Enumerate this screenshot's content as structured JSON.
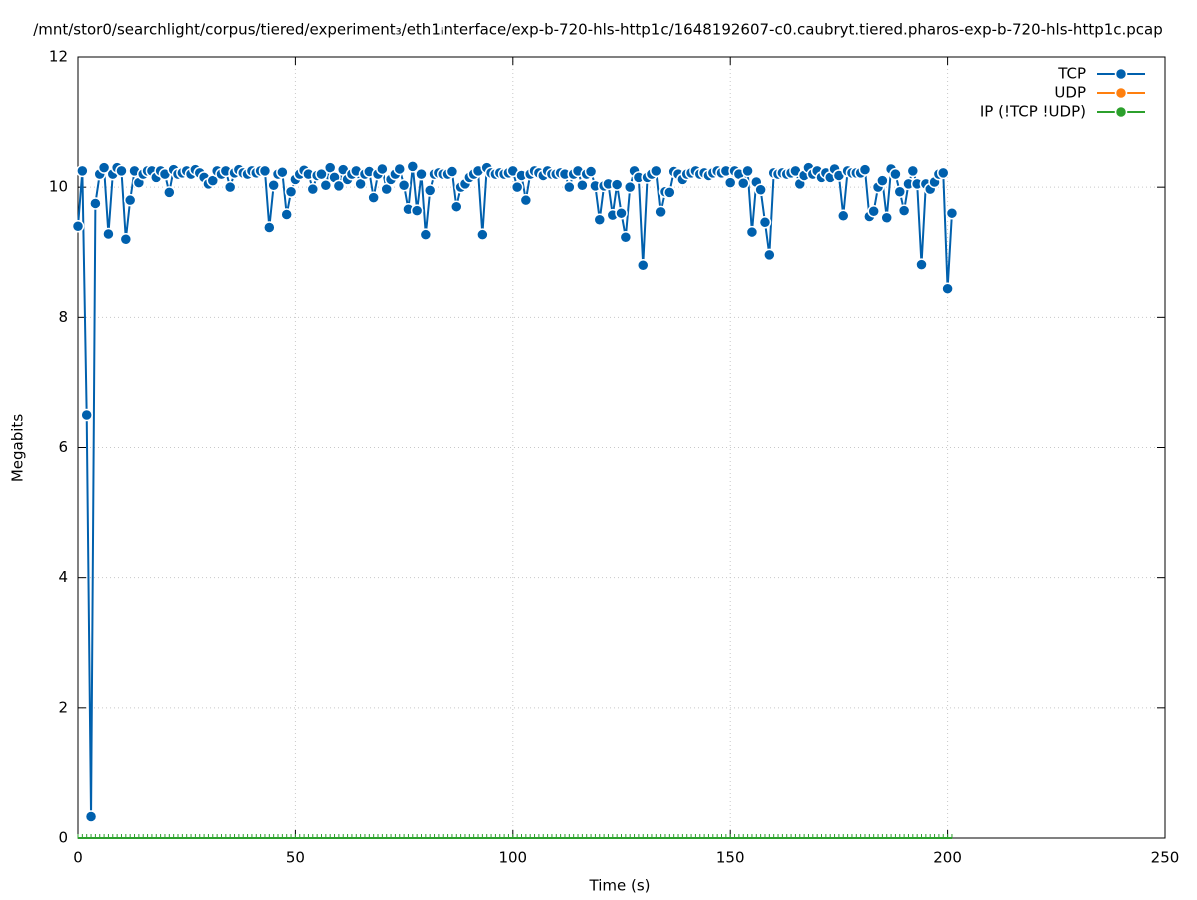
{
  "chart_data": {
    "type": "line",
    "title": "/mnt/stor0/searchlight/corpus/tiered/experiment₃/eth1ᵢnterface/exp-b-720-hls-http1c/1648192607-c0.caubryt.tiered.pharos-exp-b-720-hls-http1c.pcap",
    "xlabel": "Time (s)",
    "ylabel": "Megabits",
    "xlim": [
      0,
      250
    ],
    "xticks": [
      0,
      50,
      100,
      150,
      200,
      250
    ],
    "ylim": [
      0,
      12
    ],
    "yticks": [
      0,
      2,
      4,
      6,
      8,
      10,
      12
    ],
    "grid": true,
    "legend": "top-right",
    "x": [
      0,
      1,
      2,
      3,
      4,
      5,
      6,
      7,
      8,
      9,
      10,
      11,
      12,
      13,
      14,
      15,
      16,
      17,
      18,
      19,
      20,
      21,
      22,
      23,
      24,
      25,
      26,
      27,
      28,
      29,
      30,
      31,
      32,
      33,
      34,
      35,
      36,
      37,
      38,
      39,
      40,
      41,
      42,
      43,
      44,
      45,
      46,
      47,
      48,
      49,
      50,
      51,
      52,
      53,
      54,
      55,
      56,
      57,
      58,
      59,
      60,
      61,
      62,
      63,
      64,
      65,
      66,
      67,
      68,
      69,
      70,
      71,
      72,
      73,
      74,
      75,
      76,
      77,
      78,
      79,
      80,
      81,
      82,
      83,
      84,
      85,
      86,
      87,
      88,
      89,
      90,
      91,
      92,
      93,
      94,
      95,
      96,
      97,
      98,
      99,
      100,
      101,
      102,
      103,
      104,
      105,
      106,
      107,
      108,
      109,
      110,
      111,
      112,
      113,
      114,
      115,
      116,
      117,
      118,
      119,
      120,
      121,
      122,
      123,
      124,
      125,
      126,
      127,
      128,
      129,
      130,
      131,
      132,
      133,
      134,
      135,
      136,
      137,
      138,
      139,
      140,
      141,
      142,
      143,
      144,
      145,
      146,
      147,
      148,
      149,
      150,
      151,
      152,
      153,
      154,
      155,
      156,
      157,
      158,
      159,
      160,
      161,
      162,
      163,
      164,
      165,
      166,
      167,
      168,
      169,
      170,
      171,
      172,
      173,
      174,
      175,
      176,
      177,
      178,
      179,
      180,
      181,
      182,
      183,
      184,
      185,
      186,
      187,
      188,
      189,
      190,
      191,
      192,
      193,
      194,
      195,
      196,
      197,
      198,
      199,
      200,
      201
    ],
    "series": [
      {
        "name": "TCP",
        "color": "#0060ad",
        "values": [
          9.4,
          10.25,
          6.5,
          0.33,
          9.75,
          10.2,
          10.3,
          9.28,
          10.2,
          10.3,
          10.25,
          9.2,
          9.8,
          10.25,
          10.07,
          10.2,
          10.25,
          10.25,
          10.15,
          10.25,
          10.2,
          9.92,
          10.27,
          10.2,
          10.22,
          10.25,
          10.2,
          10.27,
          10.22,
          10.15,
          10.05,
          10.1,
          10.25,
          10.2,
          10.25,
          10.0,
          10.22,
          10.27,
          10.22,
          10.2,
          10.25,
          10.22,
          10.25,
          10.25,
          9.38,
          10.03,
          10.2,
          10.23,
          9.58,
          9.93,
          10.12,
          10.2,
          10.26,
          10.2,
          9.97,
          10.18,
          10.2,
          10.03,
          10.3,
          10.15,
          10.02,
          10.27,
          10.12,
          10.2,
          10.25,
          10.05,
          10.2,
          10.24,
          9.84,
          10.2,
          10.28,
          9.97,
          10.12,
          10.2,
          10.28,
          10.03,
          9.66,
          10.32,
          9.64,
          10.2,
          9.27,
          9.95,
          10.2,
          10.22,
          10.2,
          10.2,
          10.24,
          9.7,
          10.0,
          10.05,
          10.15,
          10.2,
          10.25,
          9.27,
          10.3,
          10.22,
          10.2,
          10.22,
          10.2,
          10.22,
          10.25,
          10.0,
          10.18,
          9.8,
          10.2,
          10.25,
          10.22,
          10.18,
          10.25,
          10.2,
          10.2,
          10.22,
          10.2,
          10.0,
          10.2,
          10.25,
          10.03,
          10.2,
          10.24,
          10.02,
          9.5,
          10.02,
          10.05,
          9.57,
          10.04,
          9.6,
          9.23,
          10.0,
          10.25,
          10.15,
          8.8,
          10.15,
          10.2,
          10.25,
          9.62,
          9.93,
          9.92,
          10.24,
          10.2,
          10.12,
          10.2,
          10.22,
          10.25,
          10.2,
          10.22,
          10.18,
          10.22,
          10.25,
          10.22,
          10.25,
          10.07,
          10.25,
          10.2,
          10.06,
          10.25,
          9.31,
          10.08,
          9.96,
          9.46,
          8.96,
          10.22,
          10.2,
          10.22,
          10.2,
          10.22,
          10.25,
          10.05,
          10.18,
          10.3,
          10.2,
          10.25,
          10.15,
          10.22,
          10.15,
          10.28,
          10.18,
          9.56,
          10.25,
          10.22,
          10.22,
          10.22,
          10.27,
          9.55,
          9.63,
          10.0,
          10.1,
          9.53,
          10.28,
          10.2,
          9.93,
          9.64,
          10.05,
          10.25,
          10.05,
          8.81,
          10.05,
          9.97,
          10.08,
          10.2,
          10.22,
          8.44,
          9.6
        ]
      },
      {
        "name": "UDP",
        "color": "#ff7f0e",
        "values": [
          null,
          null,
          null,
          null,
          null,
          null,
          null,
          null,
          null,
          null,
          null,
          null,
          null,
          null,
          null,
          null,
          null,
          null,
          null,
          null,
          null,
          null,
          null,
          null,
          null,
          null,
          null,
          null,
          null,
          null,
          null,
          null,
          null,
          null,
          null,
          null,
          null,
          null,
          null,
          null,
          null,
          null,
          null,
          null,
          null,
          null,
          null,
          null,
          null,
          null,
          null,
          null,
          null,
          null,
          null,
          null,
          null,
          null,
          null,
          null,
          null,
          null,
          null,
          null,
          null,
          null,
          null,
          null,
          null,
          null,
          null,
          null,
          null,
          null,
          null,
          null,
          null,
          null,
          null,
          null,
          null,
          null,
          null,
          null,
          null,
          null,
          null,
          null,
          null,
          null,
          null,
          null,
          null,
          null,
          null,
          null,
          null,
          null,
          null,
          null,
          null,
          null,
          null,
          null,
          null,
          null,
          null,
          null,
          null,
          null,
          null,
          null,
          null,
          null,
          null,
          null,
          null,
          null,
          null,
          null,
          null,
          null,
          null,
          null,
          null,
          null,
          null,
          null,
          null,
          null,
          null,
          null,
          null,
          null,
          null,
          null,
          null,
          null,
          null,
          null,
          null,
          null,
          null,
          null,
          null,
          null,
          null,
          null,
          null,
          null,
          null,
          null,
          null,
          null,
          null,
          null,
          null,
          null,
          null,
          null,
          null,
          null,
          null,
          null,
          null,
          null,
          null,
          null,
          null,
          null,
          null,
          null,
          null,
          null,
          null,
          null,
          null,
          null,
          null,
          null,
          null,
          null,
          null,
          null,
          null,
          null,
          null,
          null,
          null,
          null,
          null,
          null,
          null,
          null,
          null,
          null,
          null,
          null,
          null,
          null,
          null,
          null
        ]
      },
      {
        "name": "IP (!TCP  !UDP)",
        "color": "#2ca02c",
        "values": [
          0,
          0,
          0,
          0,
          0,
          0,
          0,
          0,
          0,
          0,
          0,
          0,
          0,
          0,
          0,
          0,
          0,
          0,
          0,
          0,
          0,
          0,
          0,
          0,
          0,
          0,
          0,
          0,
          0,
          0,
          0,
          0,
          0,
          0,
          0,
          0,
          0,
          0,
          0,
          0,
          0,
          0,
          0,
          0,
          0,
          0,
          0,
          0,
          0,
          0,
          0,
          0,
          0,
          0,
          0,
          0,
          0,
          0,
          0,
          0,
          0,
          0,
          0,
          0,
          0,
          0,
          0,
          0,
          0,
          0,
          0,
          0,
          0,
          0,
          0,
          0,
          0,
          0,
          0,
          0,
          0,
          0,
          0,
          0,
          0,
          0,
          0,
          0,
          0,
          0,
          0,
          0,
          0,
          0,
          0,
          0,
          0,
          0,
          0,
          0,
          0,
          0,
          0,
          0,
          0,
          0,
          0,
          0,
          0,
          0,
          0,
          0,
          0,
          0,
          0,
          0,
          0,
          0,
          0,
          0,
          0,
          0,
          0,
          0,
          0,
          0,
          0,
          0,
          0,
          0,
          0,
          0,
          0,
          0,
          0,
          0,
          0,
          0,
          0,
          0,
          0,
          0,
          0,
          0,
          0,
          0,
          0,
          0,
          0,
          0,
          0,
          0,
          0,
          0,
          0,
          0,
          0,
          0,
          0,
          0,
          0,
          0,
          0,
          0,
          0,
          0,
          0,
          0,
          0,
          0,
          0,
          0,
          0,
          0,
          0,
          0,
          0,
          0,
          0,
          0,
          0,
          0,
          0,
          0,
          0,
          0,
          0,
          0,
          0,
          0,
          0,
          0,
          0,
          0,
          0,
          0,
          0,
          0,
          0,
          0,
          0,
          0
        ]
      }
    ]
  }
}
